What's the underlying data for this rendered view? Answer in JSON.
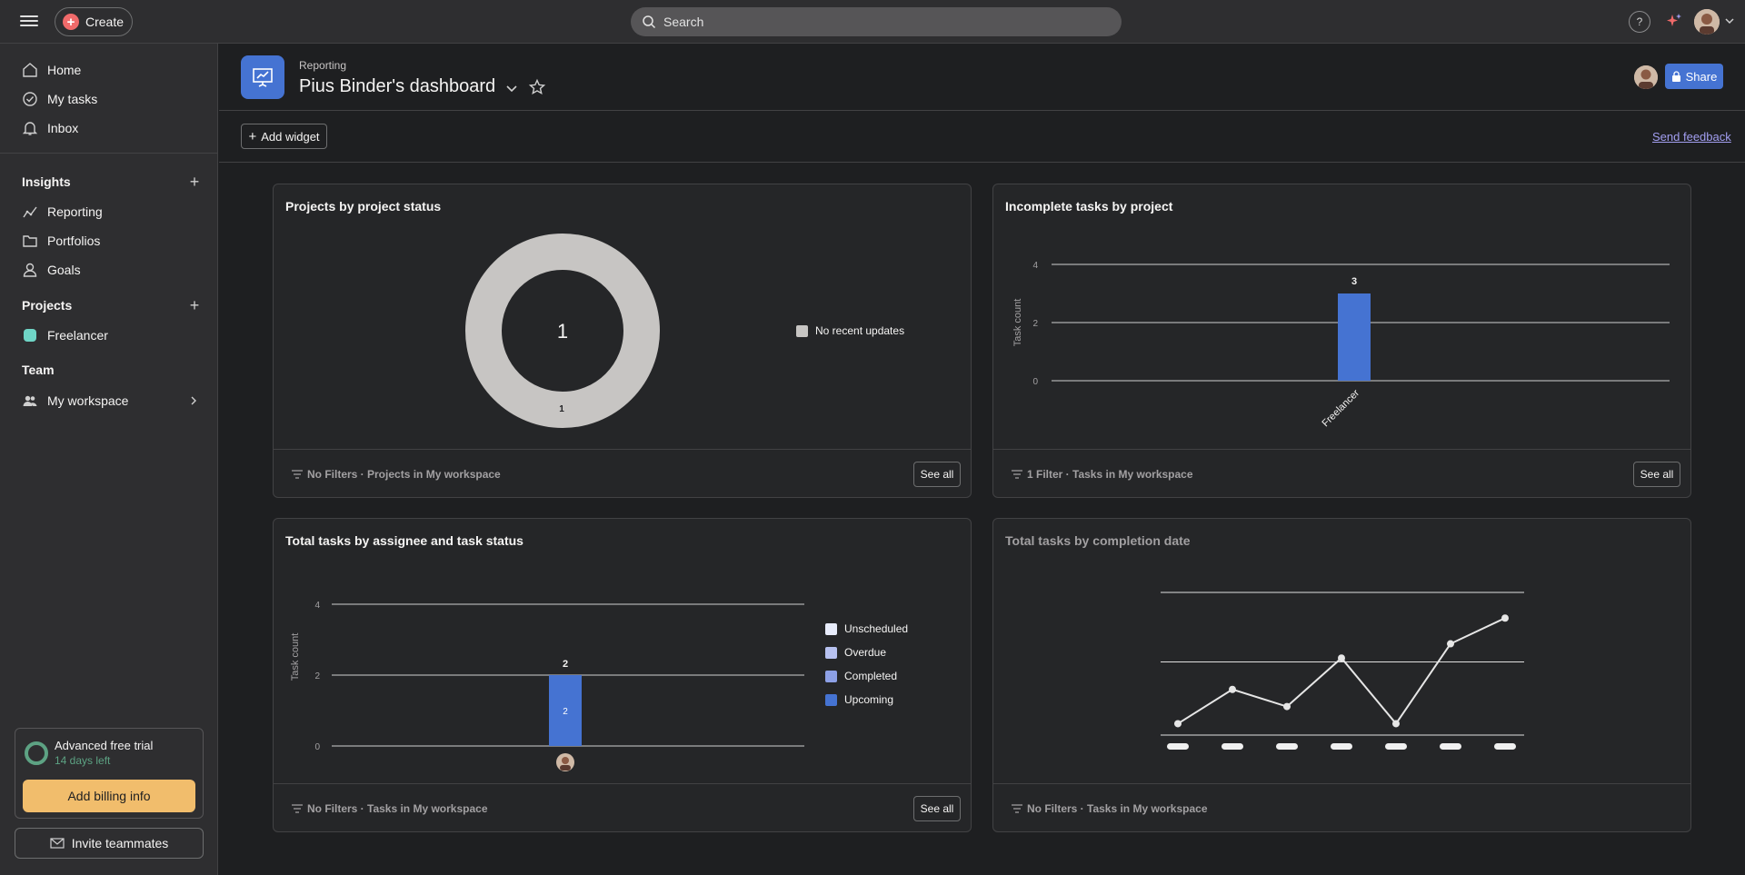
{
  "topbar": {
    "create_label": "Create",
    "search_placeholder": "Search",
    "help_label": "?"
  },
  "sidebar": {
    "nav": [
      {
        "label": "Home",
        "icon": "home-icon"
      },
      {
        "label": "My tasks",
        "icon": "check-circle-icon"
      },
      {
        "label": "Inbox",
        "icon": "bell-icon"
      }
    ],
    "insights_heading": "Insights",
    "insights": [
      {
        "label": "Reporting",
        "icon": "chart-line-icon"
      },
      {
        "label": "Portfolios",
        "icon": "folder-icon"
      },
      {
        "label": "Goals",
        "icon": "person-icon"
      }
    ],
    "projects_heading": "Projects",
    "projects": [
      {
        "label": "Freelancer",
        "color": "#6fd5c6"
      }
    ],
    "team_heading": "Team",
    "team": [
      {
        "label": "My workspace",
        "icon": "team-icon"
      }
    ],
    "trial_title": "Advanced free trial",
    "trial_days": "14 days left",
    "billing_label": "Add billing info",
    "invite_label": "Invite teammates"
  },
  "header": {
    "breadcrumb": "Reporting",
    "title": "Pius Binder's dashboard",
    "share_label": "Share"
  },
  "toolbar": {
    "add_widget_label": "Add widget",
    "feedback_label": "Send feedback"
  },
  "cards": [
    {
      "title": "Projects by project status",
      "filter_text": "No Filters · Projects in My workspace",
      "see_all": "See all"
    },
    {
      "title": "Incomplete tasks by project",
      "filter_text": "1 Filter · Tasks in My workspace",
      "see_all": "See all"
    },
    {
      "title": "Total tasks by assignee and task status",
      "filter_text": "No Filters · Tasks in My workspace",
      "see_all": "See all"
    },
    {
      "title": "Total tasks by completion date",
      "filter_text": "No Filters · Tasks in My workspace"
    }
  ],
  "colors": {
    "accent": "#4573d2",
    "billing": "#f1bd6c",
    "trial_green": "#5da283",
    "donut": "#c7c5c3"
  },
  "chart_data": [
    {
      "type": "pie",
      "title": "Projects by project status",
      "center_label": "1",
      "slices": [
        {
          "name": "No recent updates",
          "value": 1,
          "color": "#c7c5c3"
        }
      ],
      "legend": "right"
    },
    {
      "type": "bar",
      "title": "Incomplete tasks by project",
      "ylabel": "Task count",
      "categories": [
        "Freelancer"
      ],
      "values": [
        3
      ],
      "ylim": [
        0,
        4
      ],
      "yticks": [
        0,
        2,
        4
      ],
      "grid": true
    },
    {
      "type": "bar",
      "stacked": true,
      "title": "Total tasks by assignee and task status",
      "ylabel": "Task count",
      "ylim": [
        0,
        4
      ],
      "yticks": [
        0,
        2,
        4
      ],
      "categories": [
        "assignee-avatar"
      ],
      "total_labels": [
        "2"
      ],
      "series": [
        {
          "name": "Unscheduled",
          "values": [
            0
          ],
          "color": "#e8ecfb"
        },
        {
          "name": "Overdue",
          "values": [
            0
          ],
          "color": "#b7c1f0"
        },
        {
          "name": "Completed",
          "values": [
            0
          ],
          "color": "#8da0e6"
        },
        {
          "name": "Upcoming",
          "values": [
            2
          ],
          "color": "#4573d2"
        }
      ],
      "legend": "right"
    },
    {
      "type": "line",
      "title": "Total tasks by completion date",
      "placeholder": true,
      "values": [
        0.4,
        1.6,
        1.0,
        2.7,
        0.4,
        3.2,
        4.1
      ],
      "ylim": [
        0,
        5
      ]
    }
  ]
}
